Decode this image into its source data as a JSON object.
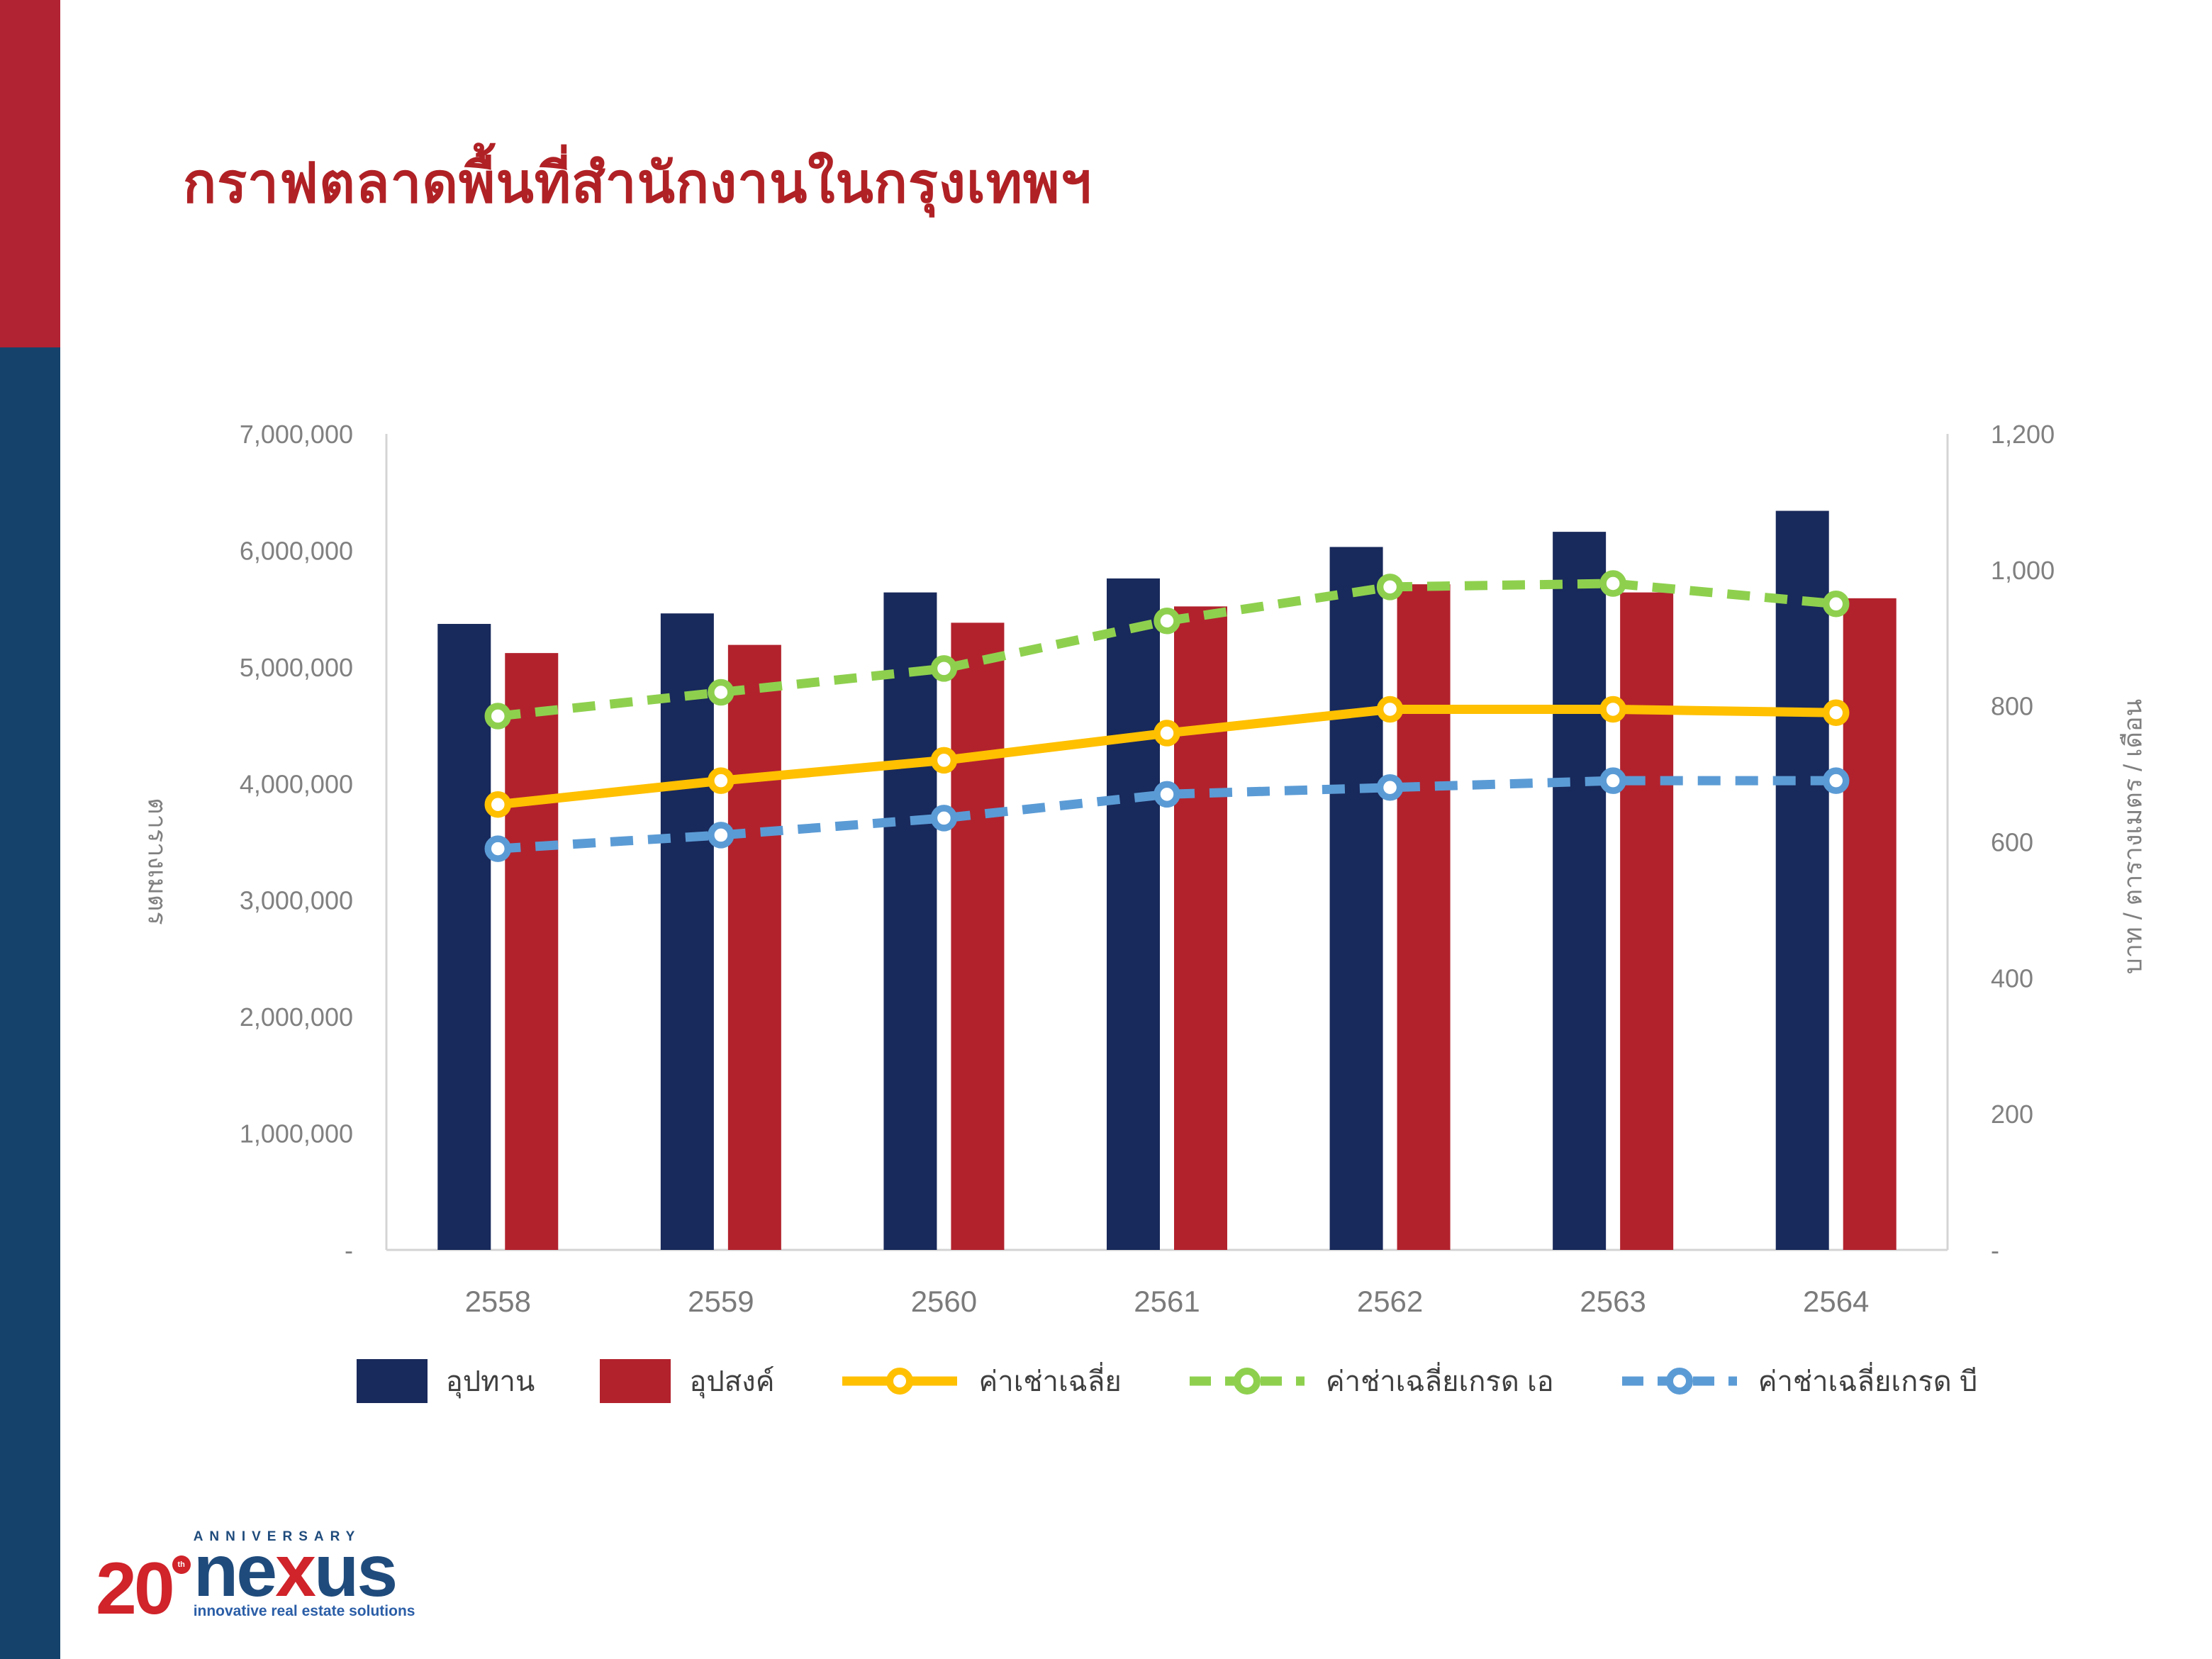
{
  "page": {
    "title": "กราฟตลาดพื้นที่สำนักงานในกรุงเทพฯ",
    "title_color": "#B02125",
    "background": "#FFFFFF",
    "sidebar": {
      "top_color": "#B12233",
      "bottom_color": "#15426B"
    }
  },
  "chart_data": {
    "type": "combo-bar-line",
    "title": "กราฟตลาดพื้นที่สำนักงานในกรุงเทพฯ",
    "categories": [
      "2558",
      "2559",
      "2560",
      "2561",
      "2562",
      "2563",
      "2564"
    ],
    "left_axis": {
      "title": "ตารางเมตร",
      "min": 0,
      "max": 7000000,
      "step": 1000000,
      "ticks": [
        "-",
        "1,000,000",
        "2,000,000",
        "3,000,000",
        "4,000,000",
        "5,000,000",
        "6,000,000",
        "7,000,000"
      ]
    },
    "right_axis": {
      "title": "บาท / ตารางเมตร / เดือน",
      "min": 0,
      "max": 1200,
      "step": 200,
      "ticks": [
        "-",
        "200",
        "400",
        "600",
        "800",
        "1,000",
        "1,200"
      ]
    },
    "series": [
      {
        "name": "อุปทาน",
        "type": "bar",
        "axis": "left",
        "color": "#18295B",
        "values": [
          5370000,
          5460000,
          5640000,
          5760000,
          6030000,
          6160000,
          6340000
        ]
      },
      {
        "name": "อุปสงค์",
        "type": "bar",
        "axis": "left",
        "color": "#B2222D",
        "values": [
          5120000,
          5190000,
          5380000,
          5520000,
          5710000,
          5640000,
          5590000
        ]
      },
      {
        "name": "ค่าเช่าเฉลี่ย",
        "type": "line",
        "line_style": "solid",
        "axis": "right",
        "color": "#FFC000",
        "values": [
          655,
          690,
          720,
          760,
          795,
          795,
          790
        ]
      },
      {
        "name": "ค่าช่าเฉลี่ยเกรด เอ",
        "type": "line",
        "line_style": "dashed",
        "axis": "right",
        "color": "#8ED04E",
        "values": [
          785,
          820,
          855,
          925,
          975,
          980,
          950
        ]
      },
      {
        "name": "ค่าช่าเฉลี่ยเกรด บี",
        "type": "line",
        "line_style": "dashed",
        "axis": "right",
        "color": "#5B9BD5",
        "values": [
          590,
          610,
          635,
          670,
          680,
          690,
          690
        ]
      }
    ],
    "legend_position": "bottom",
    "grid": false
  },
  "logo": {
    "number": "20",
    "superscript": "th",
    "anniversary": "ANNIVERSARY",
    "brand_prefix": "ne",
    "brand_x": "x",
    "brand_suffix": "us",
    "tagline": "innovative real estate solutions",
    "red": "#D0232A",
    "navy": "#1F4B7C",
    "tagline_color": "#2B5EA7"
  }
}
